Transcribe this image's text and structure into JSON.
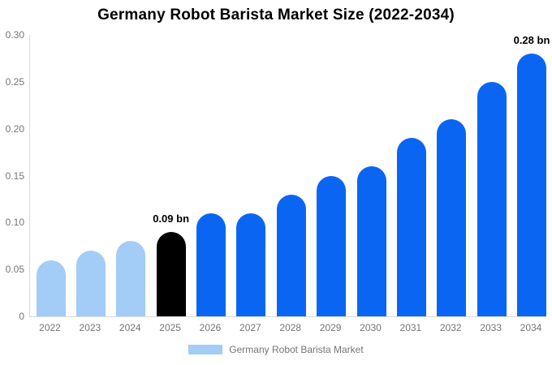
{
  "title": "Germany Robot Barista Market Size (2022-2034)",
  "chart_data": {
    "type": "bar",
    "title": "Germany Robot Barista Market Size (2022-2034)",
    "categories": [
      "2022",
      "2023",
      "2024",
      "2025",
      "2026",
      "2027",
      "2028",
      "2029",
      "2030",
      "2031",
      "2032",
      "2033",
      "2034"
    ],
    "series": [
      {
        "name": "Germany Robot Barista Market",
        "values": [
          0.06,
          0.07,
          0.08,
          0.09,
          0.11,
          0.11,
          0.13,
          0.15,
          0.16,
          0.19,
          0.21,
          0.25,
          0.28
        ]
      }
    ],
    "unit": "bn",
    "xlabel": "",
    "ylabel": "",
    "ylim": [
      0,
      0.3
    ],
    "ytick_labels": [
      "0.30",
      "0.25",
      "0.20",
      "0.15",
      "0.10",
      "0.05",
      "0"
    ],
    "grid": false,
    "legend_position": "bottom",
    "bar_colors": [
      "#A3CCF7",
      "#A3CCF7",
      "#A3CCF7",
      "#000000",
      "#0A66F2",
      "#0A66F2",
      "#0A66F2",
      "#0A66F2",
      "#0A66F2",
      "#0A66F2",
      "#0A66F2",
      "#0A66F2",
      "#0A66F2"
    ],
    "annotations": [
      {
        "category": "2025",
        "text": "0.09 bn"
      },
      {
        "category": "2034",
        "text": "0.28 bn"
      }
    ]
  },
  "legend": {
    "label": "Germany Robot Barista Market",
    "swatch_color": "#A3CCF7"
  },
  "colors": {
    "historical_bar": "#A3CCF7",
    "base_year_bar": "#000000",
    "forecast_bar": "#0A66F2",
    "axis_line": "#D9D9D9",
    "axis_text": "#757575",
    "title_text": "#000000",
    "background": "#FFFFFF"
  }
}
